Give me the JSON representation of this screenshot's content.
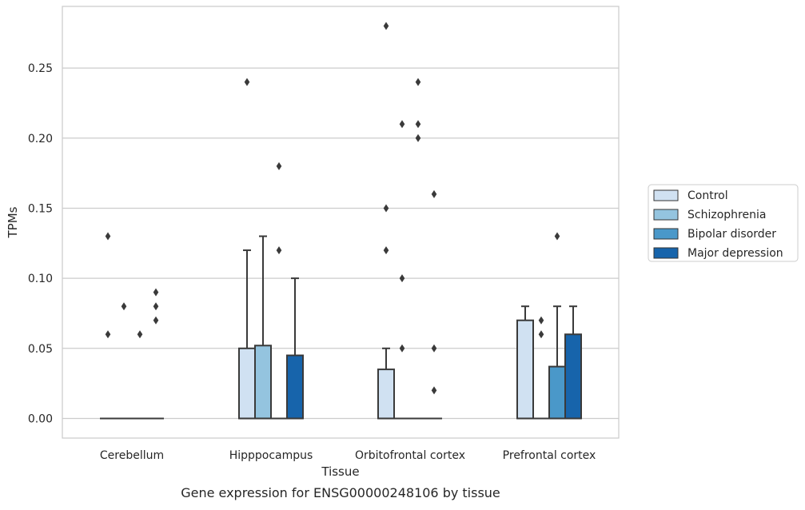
{
  "chart_data": {
    "type": "box",
    "caption": "Gene expression for ENSG00000248106 by tissue",
    "xlabel": "Tissue",
    "ylabel": "TPMs",
    "ylim": [
      -0.014,
      0.294
    ],
    "yticks": [
      0.0,
      0.05,
      0.1,
      0.15,
      0.2,
      0.25
    ],
    "ytick_labels": [
      "0.00",
      "0.05",
      "0.10",
      "0.15",
      "0.20",
      "0.25"
    ],
    "grid": true,
    "legend_position": "right",
    "categories": [
      "Cerebellum",
      "Hipppocampus",
      "Orbitofrontal cortex",
      "Prefrontal cortex"
    ],
    "series": [
      {
        "name": "Control",
        "color": "#d0e1f2",
        "boxes": [
          {
            "q1": 0,
            "median": 0,
            "q3": 0,
            "whisker_low": 0,
            "whisker_high": 0,
            "outliers": [
              0.13,
              0.06
            ]
          },
          {
            "q1": 0,
            "median": 0,
            "q3": 0.05,
            "whisker_low": 0,
            "whisker_high": 0.12,
            "outliers": [
              0.24
            ]
          },
          {
            "q1": 0,
            "median": 0,
            "q3": 0.035,
            "whisker_low": 0,
            "whisker_high": 0.05,
            "outliers": [
              0.28,
              0.15,
              0.12
            ]
          },
          {
            "q1": 0,
            "median": 0,
            "q3": 0.07,
            "whisker_low": 0,
            "whisker_high": 0.08,
            "outliers": []
          }
        ]
      },
      {
        "name": "Schizophrenia",
        "color": "#94c4df",
        "boxes": [
          {
            "q1": 0,
            "median": 0,
            "q3": 0,
            "whisker_low": 0,
            "whisker_high": 0,
            "outliers": [
              0.08
            ]
          },
          {
            "q1": 0,
            "median": 0,
            "q3": 0.052,
            "whisker_low": 0,
            "whisker_high": 0.13,
            "outliers": []
          },
          {
            "q1": 0,
            "median": 0,
            "q3": 0,
            "whisker_low": 0,
            "whisker_high": 0,
            "outliers": [
              0.21,
              0.1,
              0.05
            ]
          },
          {
            "q1": 0,
            "median": 0,
            "q3": 0,
            "whisker_low": 0,
            "whisker_high": 0,
            "outliers": [
              0.07,
              0.06
            ]
          }
        ]
      },
      {
        "name": "Bipolar disorder",
        "color": "#4a98c9",
        "boxes": [
          {
            "q1": 0,
            "median": 0,
            "q3": 0,
            "whisker_low": 0,
            "whisker_high": 0,
            "outliers": [
              0.06
            ]
          },
          {
            "q1": 0,
            "median": 0,
            "q3": 0,
            "whisker_low": 0,
            "whisker_high": 0,
            "outliers": [
              0.18,
              0.12
            ]
          },
          {
            "q1": 0,
            "median": 0,
            "q3": 0,
            "whisker_low": 0,
            "whisker_high": 0,
            "outliers": [
              0.24,
              0.21,
              0.2
            ]
          },
          {
            "q1": 0,
            "median": 0,
            "q3": 0.037,
            "whisker_low": 0,
            "whisker_high": 0.08,
            "outliers": [
              0.13
            ]
          }
        ]
      },
      {
        "name": "Major depression",
        "color": "#1764ab",
        "boxes": [
          {
            "q1": 0,
            "median": 0,
            "q3": 0,
            "whisker_low": 0,
            "whisker_high": 0,
            "outliers": [
              0.09,
              0.08,
              0.07
            ]
          },
          {
            "q1": 0,
            "median": 0,
            "q3": 0.045,
            "whisker_low": 0,
            "whisker_high": 0.1,
            "outliers": []
          },
          {
            "q1": 0,
            "median": 0,
            "q3": 0,
            "whisker_low": 0,
            "whisker_high": 0,
            "outliers": [
              0.16,
              0.05,
              0.02
            ]
          },
          {
            "q1": 0,
            "median": 0,
            "q3": 0.06,
            "whisker_low": 0,
            "whisker_high": 0.08,
            "outliers": []
          }
        ]
      }
    ]
  }
}
